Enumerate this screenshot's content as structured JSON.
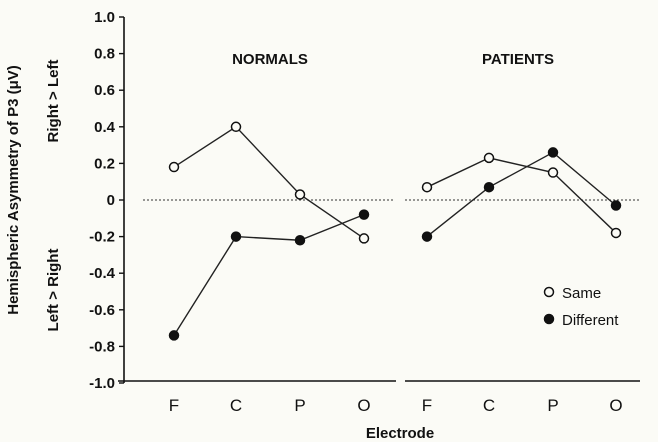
{
  "chart_data": {
    "type": "line",
    "ylabel": "Hemispheric Asymmetry of P3 (μV)",
    "ylabel_upper": "Right > Left",
    "ylabel_lower": "Left > Right",
    "xlabel": "Electrode",
    "ylim": [
      -1.0,
      1.0
    ],
    "y_ticks": [
      "1.0",
      "0.8",
      "0.6",
      "0.4",
      "0.2",
      "0",
      "-0.2",
      "-0.4",
      "-0.6",
      "-0.8",
      "-1.0"
    ],
    "y_tick_values": [
      1.0,
      0.8,
      0.6,
      0.4,
      0.2,
      0,
      -0.2,
      -0.4,
      -0.6,
      -0.8,
      -1.0
    ],
    "categories": [
      "F",
      "C",
      "P",
      "O"
    ],
    "zero_line": "dotted",
    "legend_position": "bottom-right",
    "panels": [
      {
        "title": "NORMALS",
        "series": [
          {
            "name": "Same",
            "marker": "open-circle",
            "values": [
              0.18,
              0.4,
              0.03,
              -0.21
            ]
          },
          {
            "name": "Different",
            "marker": "filled-circle",
            "values": [
              -0.74,
              -0.2,
              -0.22,
              -0.08
            ]
          }
        ]
      },
      {
        "title": "PATIENTS",
        "series": [
          {
            "name": "Same",
            "marker": "open-circle",
            "values": [
              0.07,
              0.23,
              0.15,
              -0.18
            ]
          },
          {
            "name": "Different",
            "marker": "filled-circle",
            "values": [
              -0.2,
              0.07,
              0.26,
              -0.03
            ]
          }
        ]
      }
    ]
  }
}
